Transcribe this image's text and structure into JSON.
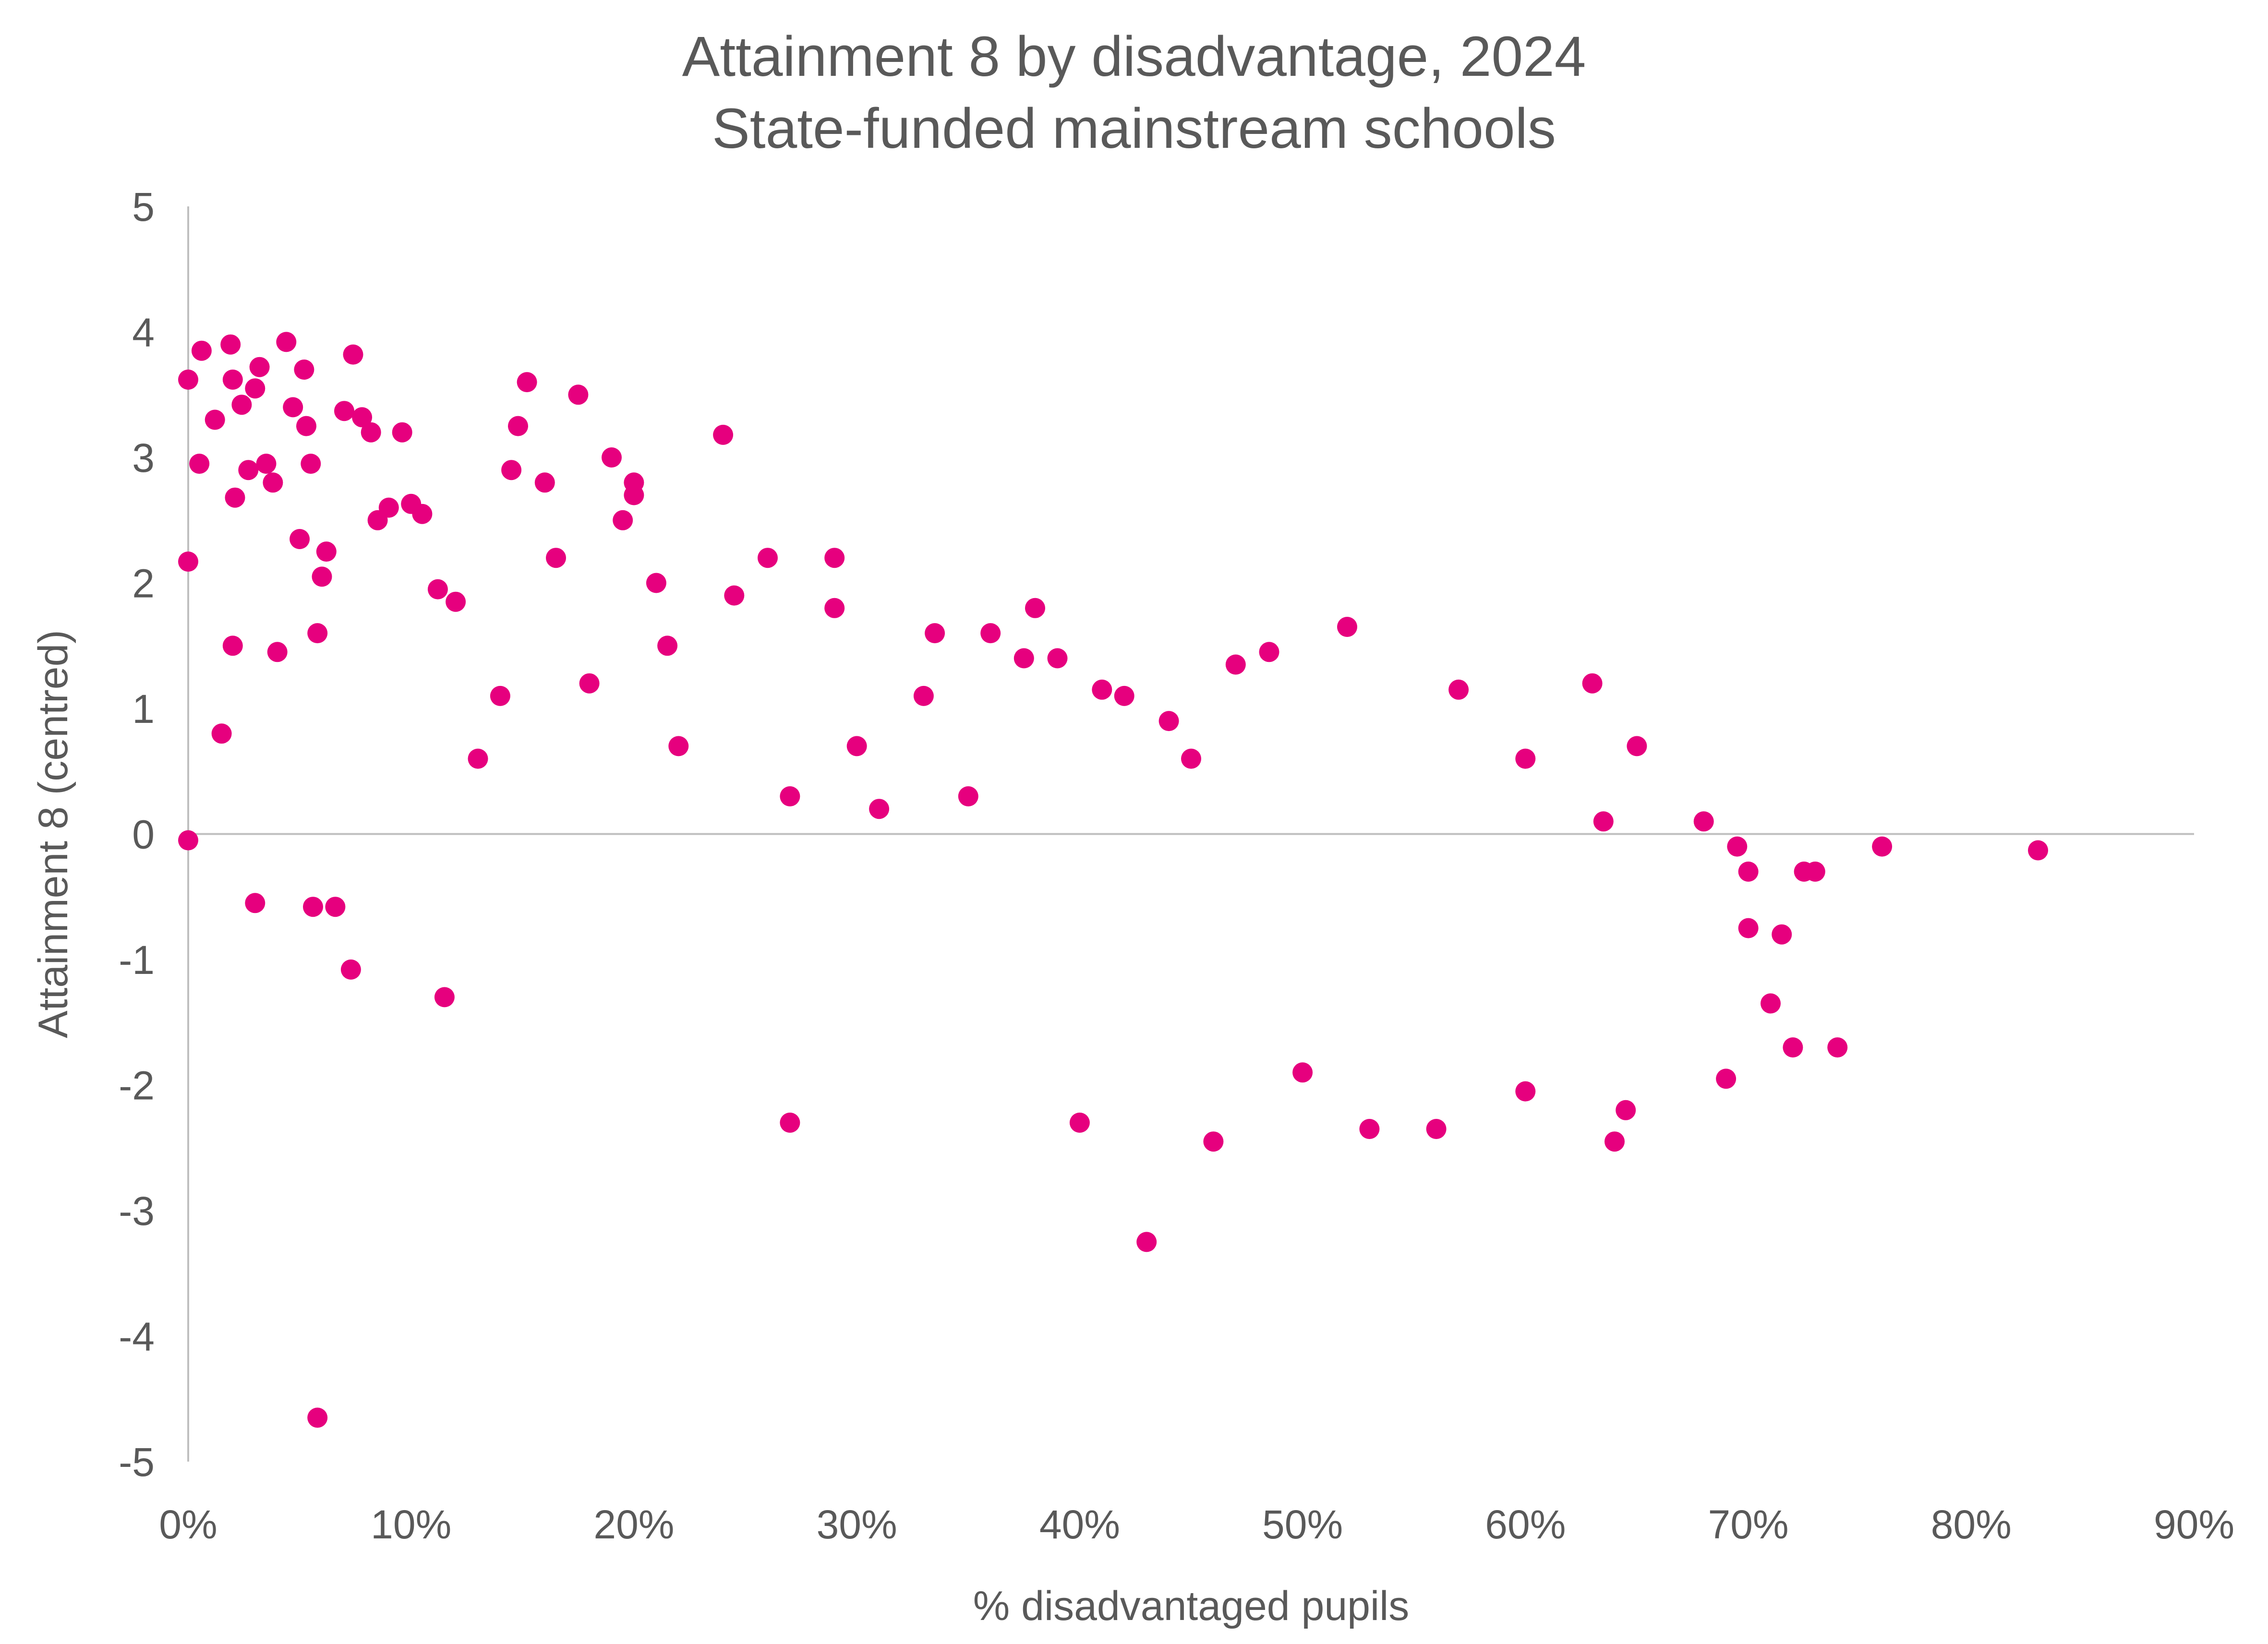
{
  "chart_data": {
    "type": "scatter",
    "title": "Attainment 8 by disadvantage, 2024",
    "subtitle": "State-funded mainstream schools",
    "xlabel": "% disadvantaged pupils",
    "ylabel": "Attainment 8 (centred)",
    "xlim": [
      0,
      0.9
    ],
    "ylim": [
      -5,
      5
    ],
    "x_ticks": [
      "0%",
      "10%",
      "20%",
      "30%",
      "40%",
      "50%",
      "60%",
      "70%",
      "80%",
      "90%"
    ],
    "y_ticks": [
      "5",
      "4",
      "3",
      "2",
      "1",
      "0",
      "-1",
      "-2",
      "-3",
      "-4",
      "-5"
    ],
    "marker_color": "#E6007E",
    "grid": false,
    "legend": "none",
    "series": [
      {
        "points": [
          [
            0.0,
            3.62
          ],
          [
            0.0,
            2.17
          ],
          [
            0.0,
            -0.05
          ],
          [
            0.006,
            3.85
          ],
          [
            0.005,
            2.95
          ],
          [
            0.012,
            3.3
          ],
          [
            0.019,
            3.9
          ],
          [
            0.02,
            3.62
          ],
          [
            0.021,
            2.68
          ],
          [
            0.02,
            1.5
          ],
          [
            0.015,
            0.8
          ],
          [
            0.024,
            3.42
          ],
          [
            0.027,
            2.9
          ],
          [
            0.03,
            3.55
          ],
          [
            0.032,
            3.72
          ],
          [
            0.035,
            2.95
          ],
          [
            0.038,
            2.8
          ],
          [
            0.04,
            1.45
          ],
          [
            0.044,
            3.92
          ],
          [
            0.047,
            3.4
          ],
          [
            0.03,
            -0.55
          ],
          [
            0.05,
            2.35
          ],
          [
            0.053,
            3.25
          ],
          [
            0.055,
            2.95
          ],
          [
            0.052,
            3.7
          ],
          [
            0.058,
            1.6
          ],
          [
            0.06,
            2.05
          ],
          [
            0.062,
            2.25
          ],
          [
            0.056,
            -0.58
          ],
          [
            0.058,
            -4.65
          ],
          [
            0.066,
            -0.58
          ],
          [
            0.07,
            3.37
          ],
          [
            0.074,
            3.82
          ],
          [
            0.078,
            3.32
          ],
          [
            0.073,
            -1.08
          ],
          [
            0.082,
            3.2
          ],
          [
            0.085,
            2.5
          ],
          [
            0.09,
            2.6
          ],
          [
            0.096,
            3.2
          ],
          [
            0.1,
            2.63
          ],
          [
            0.105,
            2.55
          ],
          [
            0.112,
            1.95
          ],
          [
            0.12,
            1.85
          ],
          [
            0.115,
            -1.3
          ],
          [
            0.13,
            0.6
          ],
          [
            0.14,
            1.1
          ],
          [
            0.145,
            2.9
          ],
          [
            0.148,
            3.25
          ],
          [
            0.152,
            3.6
          ],
          [
            0.16,
            2.8
          ],
          [
            0.165,
            2.2
          ],
          [
            0.175,
            3.5
          ],
          [
            0.18,
            1.2
          ],
          [
            0.19,
            3.0
          ],
          [
            0.195,
            2.5
          ],
          [
            0.2,
            2.8
          ],
          [
            0.2,
            2.7
          ],
          [
            0.21,
            2.0
          ],
          [
            0.215,
            1.5
          ],
          [
            0.22,
            0.7
          ],
          [
            0.24,
            3.18
          ],
          [
            0.245,
            1.9
          ],
          [
            0.26,
            2.2
          ],
          [
            0.27,
            0.3
          ],
          [
            0.27,
            -2.3
          ],
          [
            0.29,
            2.2
          ],
          [
            0.29,
            1.8
          ],
          [
            0.3,
            0.7
          ],
          [
            0.31,
            0.2
          ],
          [
            0.33,
            1.1
          ],
          [
            0.335,
            1.6
          ],
          [
            0.35,
            0.3
          ],
          [
            0.36,
            1.6
          ],
          [
            0.375,
            1.4
          ],
          [
            0.38,
            1.8
          ],
          [
            0.39,
            1.4
          ],
          [
            0.4,
            -2.3
          ],
          [
            0.41,
            1.15
          ],
          [
            0.42,
            1.1
          ],
          [
            0.43,
            -3.25
          ],
          [
            0.44,
            0.9
          ],
          [
            0.45,
            0.6
          ],
          [
            0.46,
            -2.45
          ],
          [
            0.47,
            1.35
          ],
          [
            0.485,
            1.45
          ],
          [
            0.5,
            -1.9
          ],
          [
            0.52,
            1.65
          ],
          [
            0.53,
            -2.35
          ],
          [
            0.56,
            -2.35
          ],
          [
            0.57,
            1.15
          ],
          [
            0.6,
            0.6
          ],
          [
            0.6,
            -2.05
          ],
          [
            0.63,
            1.2
          ],
          [
            0.635,
            0.1
          ],
          [
            0.64,
            -2.45
          ],
          [
            0.645,
            -2.2
          ],
          [
            0.65,
            0.7
          ],
          [
            0.68,
            0.1
          ],
          [
            0.69,
            -1.95
          ],
          [
            0.695,
            -0.1
          ],
          [
            0.7,
            -0.3
          ],
          [
            0.7,
            -0.75
          ],
          [
            0.71,
            -1.35
          ],
          [
            0.715,
            -0.8
          ],
          [
            0.72,
            -1.7
          ],
          [
            0.725,
            -0.3
          ],
          [
            0.73,
            -0.3
          ],
          [
            0.74,
            -1.7
          ],
          [
            0.76,
            -0.1
          ],
          [
            0.83,
            -0.13
          ]
        ]
      }
    ]
  }
}
